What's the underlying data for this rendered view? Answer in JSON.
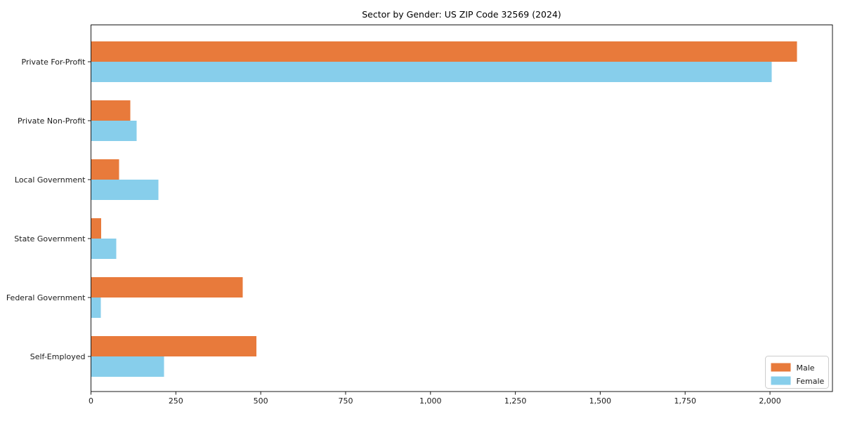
{
  "chart_data": {
    "type": "bar",
    "orientation": "horizontal",
    "title": "Sector by Gender: US ZIP Code 32569 (2024)",
    "categories": [
      "Private For-Profit",
      "Private Non-Profit",
      "Local Government",
      "State Government",
      "Federal Government",
      "Self-Employed"
    ],
    "series": [
      {
        "name": "Male",
        "color": "#e87a3b",
        "values": [
          2080,
          116,
          83,
          30,
          447,
          487
        ]
      },
      {
        "name": "Female",
        "color": "#87ceeb",
        "values": [
          2005,
          135,
          199,
          75,
          29,
          215
        ]
      }
    ],
    "xlabel": "",
    "ylabel": "",
    "xlim": [
      0,
      2184
    ],
    "xticks": [
      {
        "value": 0,
        "label": "0"
      },
      {
        "value": 250,
        "label": "250"
      },
      {
        "value": 500,
        "label": "500"
      },
      {
        "value": 750,
        "label": "750"
      },
      {
        "value": 1000,
        "label": "1,000"
      },
      {
        "value": 1250,
        "label": "1,250"
      },
      {
        "value": 1500,
        "label": "1,500"
      },
      {
        "value": 1750,
        "label": "1,750"
      },
      {
        "value": 2000,
        "label": "2,000"
      }
    ],
    "grid": false,
    "legend": {
      "position": "lower right",
      "entries": [
        "Male",
        "Female"
      ]
    }
  },
  "theme": {
    "background": "#ffffff",
    "axis_color": "#1a1a1a",
    "text_color": "#1a1a1a",
    "legend_border": "#cccccc",
    "legend_background": "#ffffff"
  }
}
